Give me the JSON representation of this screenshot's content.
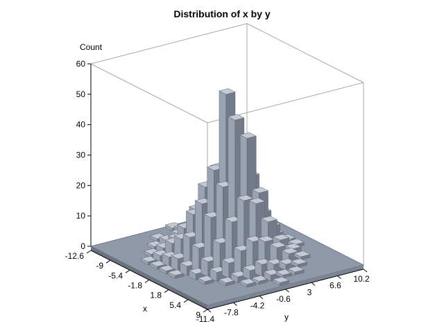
{
  "chart_data": {
    "type": "bar",
    "subtype": "3d-histogram",
    "title": "Distribution of x by y",
    "zlabel": "Count",
    "xlabel": "x",
    "ylabel": "y",
    "z_ticks": [
      "0",
      "10",
      "20",
      "30",
      "40",
      "50",
      "60"
    ],
    "x_ticks": [
      "-12.6",
      "-9",
      "-5.4",
      "-1.8",
      "1.8",
      "5.4",
      "9"
    ],
    "y_ticks": [
      "-11.4",
      "-7.8",
      "-4.2",
      "-0.6",
      "3",
      "6.6",
      "10.2"
    ],
    "zlim": [
      0,
      60
    ],
    "x_bins": [
      -12.6,
      -10.8,
      -9,
      -7.2,
      -5.4,
      -3.6,
      -1.8,
      0,
      1.8,
      3.6,
      5.4,
      7.2,
      9
    ],
    "y_bins": [
      -11.4,
      -9.6,
      -7.8,
      -6,
      -4.2,
      -2.4,
      -0.6,
      1.2,
      3,
      4.8,
      6.6,
      8.4,
      10.2
    ],
    "counts": [
      [
        0,
        0,
        0,
        0,
        0,
        0,
        1,
        0,
        0,
        0,
        0,
        0,
        0
      ],
      [
        0,
        0,
        0,
        0,
        1,
        0,
        2,
        1,
        0,
        0,
        0,
        0,
        0
      ],
      [
        0,
        0,
        0,
        1,
        2,
        3,
        4,
        2,
        1,
        0,
        0,
        0,
        0
      ],
      [
        0,
        0,
        1,
        2,
        4,
        6,
        8,
        5,
        3,
        1,
        0,
        0,
        0
      ],
      [
        0,
        1,
        2,
        5,
        9,
        14,
        17,
        12,
        7,
        3,
        1,
        0,
        0
      ],
      [
        0,
        1,
        3,
        8,
        15,
        23,
        28,
        24,
        14,
        7,
        2,
        0,
        0
      ],
      [
        0,
        1,
        4,
        10,
        20,
        30,
        54,
        37,
        25,
        12,
        4,
        1,
        0
      ],
      [
        0,
        1,
        3,
        8,
        17,
        26,
        47,
        40,
        21,
        9,
        3,
        1,
        0
      ],
      [
        0,
        0,
        2,
        5,
        10,
        16,
        22,
        20,
        13,
        6,
        2,
        0,
        0
      ],
      [
        0,
        0,
        1,
        3,
        5,
        8,
        10,
        9,
        6,
        3,
        1,
        0,
        0
      ],
      [
        0,
        0,
        0,
        1,
        2,
        3,
        4,
        3,
        2,
        1,
        0,
        0,
        0
      ],
      [
        0,
        0,
        0,
        0,
        1,
        1,
        2,
        1,
        1,
        0,
        0,
        0,
        0
      ],
      [
        0,
        0,
        0,
        0,
        0,
        0,
        1,
        0,
        0,
        0,
        0,
        0,
        0
      ]
    ]
  }
}
